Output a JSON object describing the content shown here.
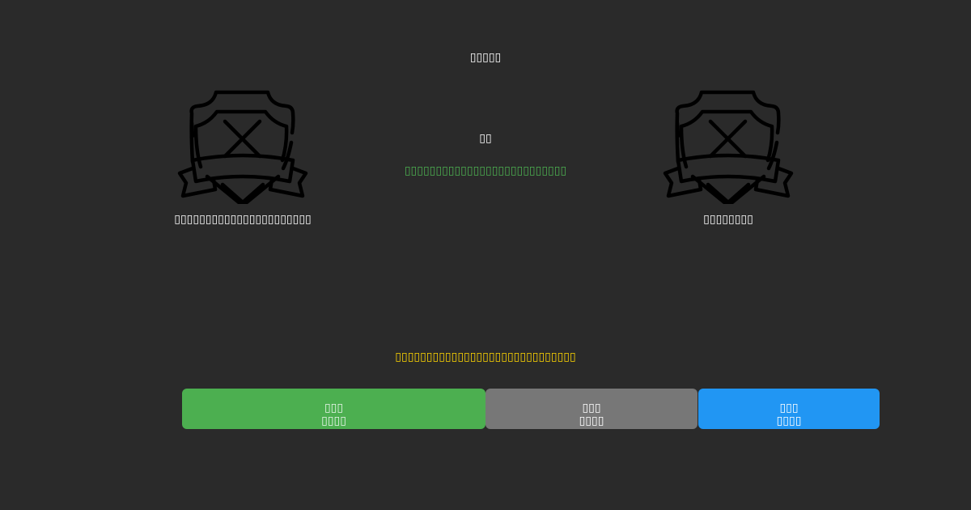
{
  "header": {
    "title": "▯▯▯▯▯",
    "versus": "▯▯"
  },
  "status_message": "▯▯▯▯▯▯▯▯▯▯▯▯▯▯▯▯▯▯▯▯▯▯▯▯▯▯",
  "left_player": {
    "icon": "shield-x-icon",
    "caption": "▯▯▯▯▯▯▯▯▯▯▯▯▯▯▯▯▯▯▯▯▯▯"
  },
  "right_player": {
    "icon": "shield-x-icon",
    "caption": "▯▯▯▯▯▯▯▯"
  },
  "warning_message": "▯▯▯▯▯▯▯▯▯▯▯▯▯▯▯▯▯▯▯▯▯▯▯▯▯▯▯▯▯",
  "buttons": [
    {
      "line1": "▯▯▯",
      "line2": "▯▯▯▯",
      "color": "#4caf50"
    },
    {
      "line1": "▯▯▯",
      "line2": "▯▯▯▯",
      "color": "#777777"
    },
    {
      "line1": "▯▯▯",
      "line2": "▯▯▯▯",
      "color": "#2196f3"
    }
  ],
  "colors": {
    "background": "#2a2a2a",
    "status": "#4caf50",
    "warning": "#ffd600"
  }
}
